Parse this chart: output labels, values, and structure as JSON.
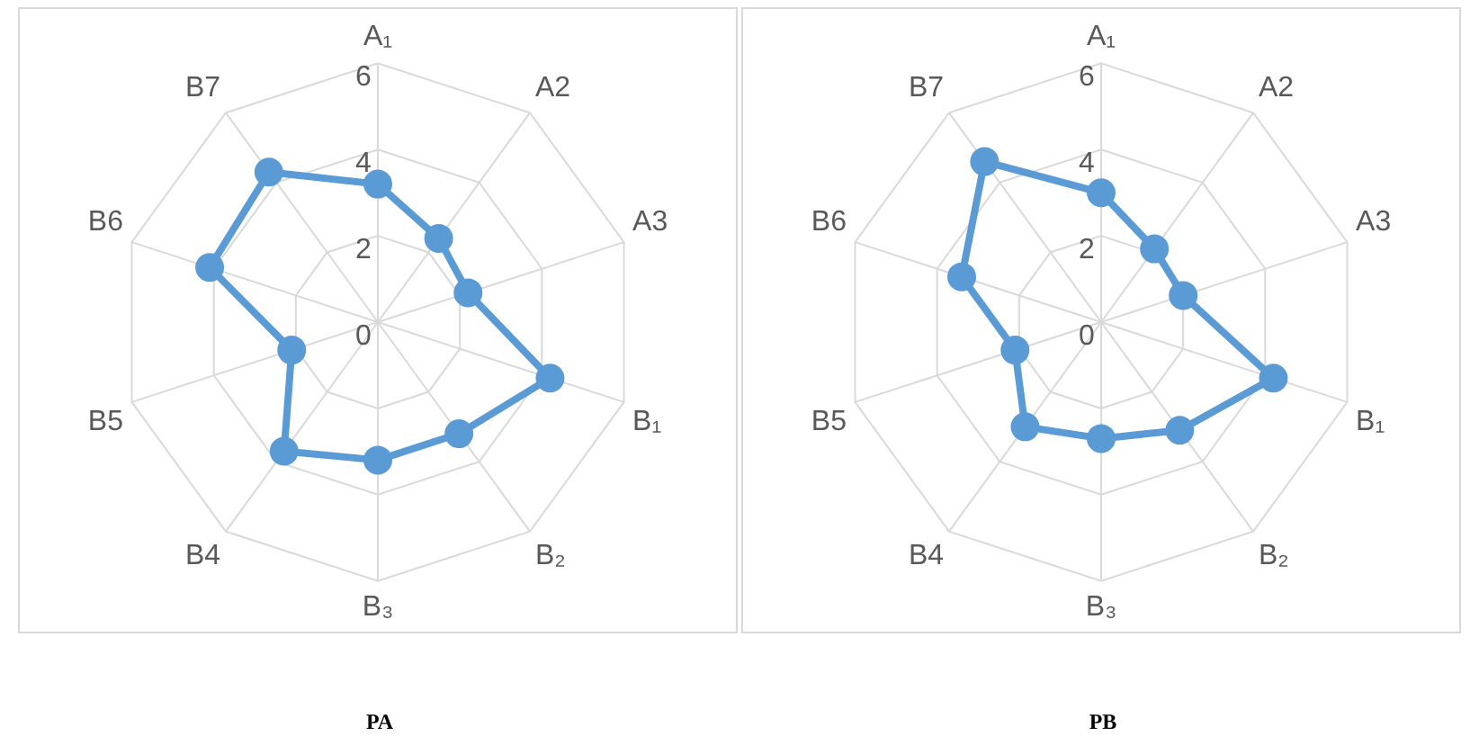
{
  "chart_data": [
    {
      "type": "radar",
      "title": "PA",
      "categories": [
        "A₁",
        "A2",
        "A3",
        "B₁",
        "B₂",
        "B₃",
        "B4",
        "B5",
        "B6",
        "B7"
      ],
      "series": [
        {
          "color": "#5b9bd5",
          "values": [
            3.2,
            2.4,
            2.2,
            4.2,
            3.2,
            3.2,
            3.7,
            2.1,
            4.1,
            4.3
          ]
        }
      ],
      "ylim": [
        0,
        6
      ],
      "yticks": [
        0,
        2,
        4,
        6
      ],
      "grid": true,
      "legend": false,
      "marker": "circle"
    },
    {
      "type": "radar",
      "title": "PB",
      "categories": [
        "A₁",
        "A2",
        "A3",
        "B₁",
        "B₂",
        "B₃",
        "B4",
        "B5",
        "B6",
        "B7"
      ],
      "series": [
        {
          "color": "#5b9bd5",
          "values": [
            3.0,
            2.1,
            2.0,
            4.2,
            3.1,
            2.7,
            3.0,
            2.1,
            3.4,
            4.6
          ]
        }
      ],
      "ylim": [
        0,
        6
      ],
      "yticks": [
        0,
        2,
        4,
        6
      ],
      "grid": true,
      "legend": false,
      "marker": "circle"
    }
  ]
}
